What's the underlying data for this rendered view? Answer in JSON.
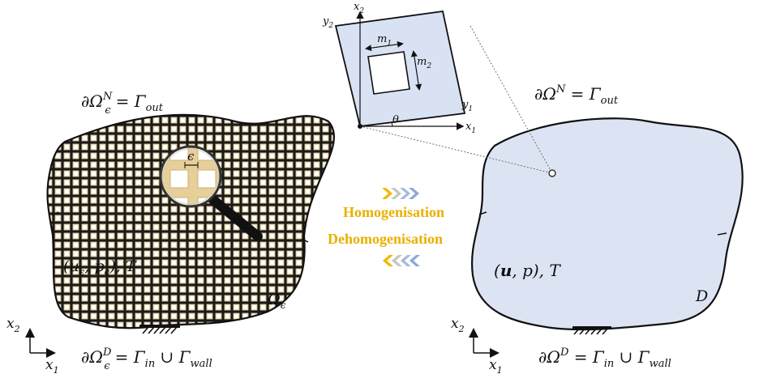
{
  "colors": {
    "lattice_fill": "#e7d6ad",
    "lattice_line": "#1a1a1a",
    "homog_fill": "#dce4f4",
    "cell_fill": "#d9e2f3",
    "arrow_gold": "#f2b701",
    "arrow_blue": "#8fa8d9",
    "text_gold": "#f2b400",
    "text_blue": "#7f9ad0"
  },
  "left": {
    "top_boundary": {
      "sym": "∂Ω",
      "sup": "N",
      "sub": "ϵ",
      "rhs": "= Γ",
      "rhs_sub": "out"
    },
    "bottom_boundary": {
      "sym": "∂Ω",
      "sup": "D",
      "sub": "ϵ",
      "rhs": "= Γ",
      "rhs_sub": "in",
      "union": " ∪ Γ",
      "union_sub": "wall"
    },
    "fields": "(u",
    "fields_sub": "ϵ",
    "fields_mid": ", p",
    "fields_sub2": "ϵ",
    "fields_end": "), T",
    "domain": "Ω",
    "domain_sub": "ϵ",
    "magnifier_label": "ϵ",
    "axis_x": "x",
    "axis_x_sub": "1",
    "axis_y": "x",
    "axis_y_sub": "2"
  },
  "right": {
    "top_boundary": {
      "sym": "∂Ω",
      "sup": "N",
      "rhs": " = Γ",
      "rhs_sub": "out"
    },
    "bottom_boundary": {
      "sym": "∂Ω",
      "sup": "D",
      "rhs": " = Γ",
      "rhs_sub": "in",
      "union": " ∪ Γ",
      "union_sub": "wall"
    },
    "fields_bold": "u",
    "fields_pre": "(",
    "fields_post": ", p), T",
    "domain": "D",
    "axis_x": "x",
    "axis_x_sub": "1",
    "axis_y": "x",
    "axis_y_sub": "2"
  },
  "cell": {
    "x1": "x",
    "x1_sub": "1",
    "x2": "x",
    "x2_sub": "2",
    "y1": "y",
    "y1_sub": "1",
    "y2": "y",
    "y2_sub": "2",
    "m1": "m",
    "m1_sub": "1",
    "m2": "m",
    "m2_sub": "2",
    "theta": "θ"
  },
  "center": {
    "homogenisation": "Homogenisation",
    "dehomogenisation": "Dehomogenisation"
  }
}
